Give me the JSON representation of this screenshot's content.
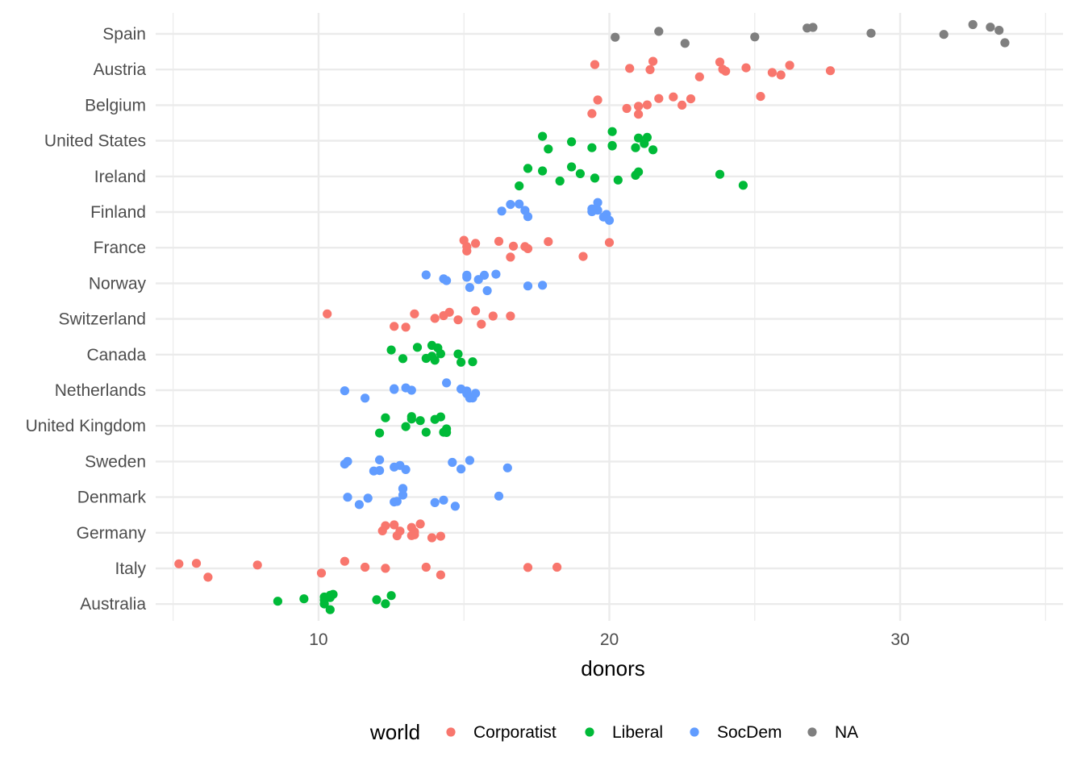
{
  "chart_data": {
    "type": "scatter",
    "title": "",
    "xlabel": "donors",
    "ylabel": "",
    "xlim": [
      4.4,
      35.6
    ],
    "x_ticks": [
      10,
      20,
      30
    ],
    "grid": true,
    "legend": {
      "title": "world",
      "position": "bottom",
      "entries": [
        "Corporatist",
        "Liberal",
        "SocDem",
        "NA"
      ]
    },
    "colors": {
      "Corporatist": "#F8766D",
      "Liberal": "#00BA38",
      "SocDem": "#619CFF",
      "NA": "#7F7F7F"
    },
    "categories": [
      "Spain",
      "Austria",
      "Belgium",
      "United States",
      "Ireland",
      "Finland",
      "France",
      "Norway",
      "Switzerland",
      "Canada",
      "Netherlands",
      "United Kingdom",
      "Sweden",
      "Denmark",
      "Germany",
      "Italy",
      "Australia"
    ],
    "series": [
      {
        "name": "Corporatist",
        "points": [
          [
            "Austria",
            23.9
          ],
          [
            "Austria",
            27.6
          ],
          [
            "Austria",
            23.8
          ],
          [
            "Austria",
            19.5
          ],
          [
            "Austria",
            20.7
          ],
          [
            "Austria",
            21.4
          ],
          [
            "Austria",
            21.5
          ],
          [
            "Austria",
            23.1
          ],
          [
            "Austria",
            24.0
          ],
          [
            "Austria",
            24.7
          ],
          [
            "Austria",
            26.2
          ],
          [
            "Austria",
            25.9
          ],
          [
            "Austria",
            25.6
          ],
          [
            "Belgium",
            22.2
          ],
          [
            "Belgium",
            22.5
          ],
          [
            "Belgium",
            19.6
          ],
          [
            "Belgium",
            20.6
          ],
          [
            "Belgium",
            21.7
          ],
          [
            "Belgium",
            21.0
          ],
          [
            "Belgium",
            21.3
          ],
          [
            "Belgium",
            22.8
          ],
          [
            "Belgium",
            25.2
          ],
          [
            "Belgium",
            19.4
          ],
          [
            "Belgium",
            21.0
          ],
          [
            "France",
            15.0
          ],
          [
            "France",
            15.1
          ],
          [
            "France",
            19.1
          ],
          [
            "France",
            17.9
          ],
          [
            "France",
            16.7
          ],
          [
            "France",
            17.2
          ],
          [
            "France",
            15.1
          ],
          [
            "France",
            15.4
          ],
          [
            "France",
            16.2
          ],
          [
            "France",
            16.6
          ],
          [
            "France",
            17.1
          ],
          [
            "France",
            20.0
          ],
          [
            "Switzerland",
            14.8
          ],
          [
            "Switzerland",
            14.3
          ],
          [
            "Switzerland",
            14.5
          ],
          [
            "Switzerland",
            15.6
          ],
          [
            "Switzerland",
            16.0
          ],
          [
            "Switzerland",
            16.6
          ],
          [
            "Switzerland",
            15.4
          ],
          [
            "Switzerland",
            13.0
          ],
          [
            "Switzerland",
            13.3
          ],
          [
            "Switzerland",
            12.6
          ],
          [
            "Switzerland",
            14.0
          ],
          [
            "Switzerland",
            10.3
          ],
          [
            "Germany",
            13.3
          ],
          [
            "Germany",
            12.2
          ],
          [
            "Germany",
            13.9
          ],
          [
            "Germany",
            12.7
          ],
          [
            "Germany",
            12.3
          ],
          [
            "Germany",
            13.2
          ],
          [
            "Germany",
            13.3
          ],
          [
            "Germany",
            12.6
          ],
          [
            "Germany",
            13.5
          ],
          [
            "Germany",
            12.8
          ],
          [
            "Germany",
            14.2
          ],
          [
            "Germany",
            13.2
          ],
          [
            "Italy",
            6.2
          ],
          [
            "Italy",
            7.9
          ],
          [
            "Italy",
            11.6
          ],
          [
            "Italy",
            12.3
          ],
          [
            "Italy",
            13.7
          ],
          [
            "Italy",
            14.2
          ],
          [
            "Italy",
            17.2
          ],
          [
            "Italy",
            18.2
          ],
          [
            "Italy",
            5.2
          ],
          [
            "Italy",
            5.8
          ],
          [
            "Italy",
            10.1
          ],
          [
            "Italy",
            10.9
          ]
        ]
      },
      {
        "name": "Liberal",
        "points": [
          [
            "United States",
            17.7
          ],
          [
            "United States",
            20.1
          ],
          [
            "United States",
            20.9
          ],
          [
            "United States",
            21.5
          ],
          [
            "United States",
            17.9
          ],
          [
            "United States",
            19.4
          ],
          [
            "United States",
            20.1
          ],
          [
            "United States",
            21.2
          ],
          [
            "United States",
            18.7
          ],
          [
            "United States",
            20.1
          ],
          [
            "United States",
            21.3
          ],
          [
            "United States",
            21.0
          ],
          [
            "Ireland",
            17.7
          ],
          [
            "Ireland",
            23.8
          ],
          [
            "Ireland",
            20.3
          ],
          [
            "Ireland",
            18.3
          ],
          [
            "Ireland",
            21.0
          ],
          [
            "Ireland",
            24.6
          ],
          [
            "Ireland",
            18.7
          ],
          [
            "Ireland",
            19.0
          ],
          [
            "Ireland",
            19.5
          ],
          [
            "Ireland",
            20.9
          ],
          [
            "Ireland",
            17.2
          ],
          [
            "Ireland",
            16.9
          ],
          [
            "Canada",
            14.2
          ],
          [
            "Canada",
            15.3
          ],
          [
            "Canada",
            13.9
          ],
          [
            "Canada",
            14.8
          ],
          [
            "Canada",
            13.4
          ],
          [
            "Canada",
            14.0
          ],
          [
            "Canada",
            14.9
          ],
          [
            "Canada",
            12.5
          ],
          [
            "Canada",
            13.9
          ],
          [
            "Canada",
            14.1
          ],
          [
            "Canada",
            12.9
          ],
          [
            "Canada",
            13.7
          ],
          [
            "United Kingdom",
            14.4
          ],
          [
            "United Kingdom",
            12.1
          ],
          [
            "United Kingdom",
            13.5
          ],
          [
            "United Kingdom",
            13.7
          ],
          [
            "United Kingdom",
            14.0
          ],
          [
            "United Kingdom",
            14.2
          ],
          [
            "United Kingdom",
            12.3
          ],
          [
            "United Kingdom",
            13.2
          ],
          [
            "United Kingdom",
            13.0
          ],
          [
            "United Kingdom",
            14.3
          ],
          [
            "United Kingdom",
            14.4
          ],
          [
            "United Kingdom",
            13.2
          ],
          [
            "Australia",
            10.2
          ],
          [
            "Australia",
            10.4
          ],
          [
            "Australia",
            12.0
          ],
          [
            "Australia",
            12.3
          ],
          [
            "Australia",
            12.5
          ],
          [
            "Australia",
            8.6
          ],
          [
            "Australia",
            9.5
          ],
          [
            "Australia",
            10.2
          ],
          [
            "Australia",
            10.4
          ],
          [
            "Australia",
            10.2
          ],
          [
            "Australia",
            10.4
          ],
          [
            "Australia",
            10.5
          ]
        ]
      },
      {
        "name": "SocDem",
        "points": [
          [
            "Finland",
            19.9
          ],
          [
            "Finland",
            16.9
          ],
          [
            "Finland",
            19.6
          ],
          [
            "Finland",
            16.6
          ],
          [
            "Finland",
            19.4
          ],
          [
            "Finland",
            17.1
          ],
          [
            "Finland",
            19.6
          ],
          [
            "Finland",
            19.8
          ],
          [
            "Finland",
            16.3
          ],
          [
            "Finland",
            17.2
          ],
          [
            "Finland",
            19.4
          ],
          [
            "Finland",
            20.0
          ],
          [
            "Norway",
            15.2
          ],
          [
            "Norway",
            17.2
          ],
          [
            "Norway",
            14.3
          ],
          [
            "Norway",
            14.4
          ],
          [
            "Norway",
            15.1
          ],
          [
            "Norway",
            15.8
          ],
          [
            "Norway",
            15.7
          ],
          [
            "Norway",
            13.7
          ],
          [
            "Norway",
            15.1
          ],
          [
            "Norway",
            15.5
          ],
          [
            "Norway",
            16.1
          ],
          [
            "Norway",
            17.7
          ],
          [
            "Netherlands",
            14.9
          ],
          [
            "Netherlands",
            13.0
          ],
          [
            "Netherlands",
            15.1
          ],
          [
            "Netherlands",
            15.2
          ],
          [
            "Netherlands",
            10.9
          ],
          [
            "Netherlands",
            12.6
          ],
          [
            "Netherlands",
            14.4
          ],
          [
            "Netherlands",
            15.3
          ],
          [
            "Netherlands",
            15.4
          ],
          [
            "Netherlands",
            13.2
          ],
          [
            "Netherlands",
            11.6
          ],
          [
            "Netherlands",
            15.1
          ],
          [
            "Netherlands",
            12.6
          ],
          [
            "Sweden",
            12.1
          ],
          [
            "Sweden",
            14.9
          ],
          [
            "Sweden",
            12.1
          ],
          [
            "Sweden",
            11.0
          ],
          [
            "Sweden",
            12.8
          ],
          [
            "Sweden",
            12.6
          ],
          [
            "Sweden",
            13.0
          ],
          [
            "Sweden",
            14.6
          ],
          [
            "Sweden",
            11.9
          ],
          [
            "Sweden",
            10.9
          ],
          [
            "Sweden",
            16.5
          ],
          [
            "Sweden",
            15.2
          ],
          [
            "Denmark",
            12.9
          ],
          [
            "Denmark",
            14.7
          ],
          [
            "Denmark",
            11.7
          ],
          [
            "Denmark",
            14.3
          ],
          [
            "Denmark",
            12.9
          ],
          [
            "Denmark",
            12.6
          ],
          [
            "Denmark",
            14.0
          ],
          [
            "Denmark",
            11.0
          ],
          [
            "Denmark",
            16.2
          ],
          [
            "Denmark",
            11.4
          ],
          [
            "Denmark",
            12.7
          ],
          [
            "Denmark",
            12.9
          ]
        ]
      },
      {
        "name": "NA",
        "points": [
          [
            "Spain",
            21.7
          ],
          [
            "Spain",
            29.0
          ],
          [
            "Spain",
            22.6
          ],
          [
            "Spain",
            25.0
          ],
          [
            "Spain",
            33.1
          ],
          [
            "Spain",
            20.2
          ],
          [
            "Spain",
            27.0
          ],
          [
            "Spain",
            26.8
          ],
          [
            "Spain",
            31.5
          ],
          [
            "Spain",
            33.4
          ],
          [
            "Spain",
            32.5
          ],
          [
            "Spain",
            33.6
          ]
        ]
      }
    ]
  }
}
